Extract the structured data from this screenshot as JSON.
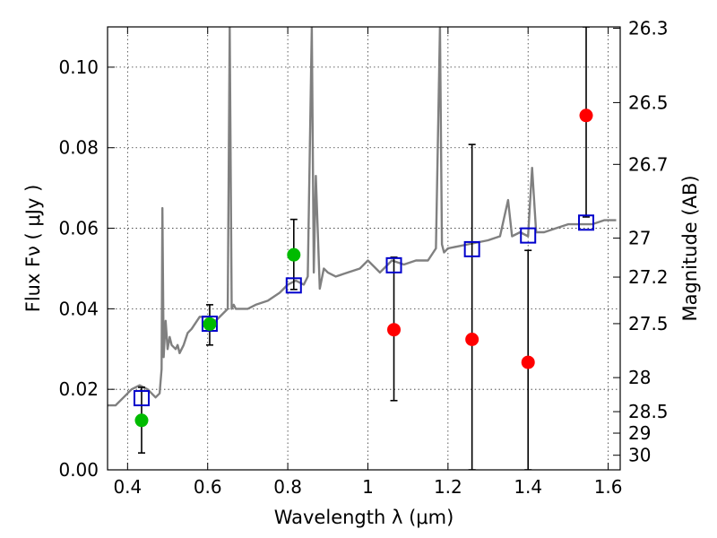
{
  "chart_data": {
    "type": "scatter",
    "title": "",
    "xlabel": "Wavelength  λ (μm)",
    "ylabel": "Flux  Fν  ( μJy )",
    "y2label": "Magnitude (AB)",
    "xlim": [
      0.35,
      1.63
    ],
    "ylim": [
      0.0,
      0.11
    ],
    "xticks": [
      0.4,
      0.6,
      0.8,
      1.0,
      1.2,
      1.4,
      1.6
    ],
    "xtick_labels": [
      "0.4",
      "0.6",
      "0.8",
      "1",
      "1.2",
      "1.4",
      "1.6"
    ],
    "yticks": [
      0.0,
      0.02,
      0.04,
      0.06,
      0.08,
      0.1
    ],
    "ytick_labels": [
      "0.00",
      "0.02",
      "0.04",
      "0.06",
      "0.08",
      "0.10"
    ],
    "y2ticks": [
      26.3,
      26.5,
      26.7,
      27,
      27.2,
      27.5,
      28,
      28.5,
      29,
      30
    ],
    "y2tick_labels": [
      "26.3",
      "26.5",
      "26.7",
      "27",
      "27.2",
      "27.5",
      "28",
      "28.5",
      "29",
      "30"
    ],
    "grid": true,
    "colors": {
      "spectrum": "#808080",
      "model_boxes": "#0000cc",
      "green_points": "#00bb00",
      "red_points": "#ff0000",
      "errorbars": "#000000"
    },
    "spectrum": {
      "x": [
        0.35,
        0.37,
        0.39,
        0.41,
        0.43,
        0.45,
        0.47,
        0.48,
        0.485,
        0.487,
        0.49,
        0.495,
        0.5,
        0.505,
        0.51,
        0.52,
        0.525,
        0.53,
        0.54,
        0.55,
        0.56,
        0.58,
        0.6,
        0.62,
        0.64,
        0.65,
        0.655,
        0.66,
        0.665,
        0.67,
        0.7,
        0.72,
        0.75,
        0.78,
        0.8,
        0.82,
        0.84,
        0.85,
        0.86,
        0.865,
        0.87,
        0.88,
        0.89,
        0.9,
        0.92,
        0.95,
        0.98,
        1.0,
        1.03,
        1.06,
        1.09,
        1.12,
        1.15,
        1.17,
        1.18,
        1.185,
        1.19,
        1.2,
        1.25,
        1.3,
        1.33,
        1.35,
        1.36,
        1.38,
        1.4,
        1.41,
        1.42,
        1.44,
        1.47,
        1.5,
        1.53,
        1.56,
        1.59,
        1.62
      ],
      "y": [
        0.016,
        0.016,
        0.018,
        0.02,
        0.021,
        0.02,
        0.018,
        0.019,
        0.025,
        0.065,
        0.028,
        0.037,
        0.03,
        0.033,
        0.031,
        0.03,
        0.031,
        0.029,
        0.031,
        0.034,
        0.035,
        0.038,
        0.038,
        0.037,
        0.039,
        0.04,
        0.11,
        0.04,
        0.041,
        0.04,
        0.04,
        0.041,
        0.042,
        0.044,
        0.046,
        0.047,
        0.046,
        0.048,
        0.11,
        0.049,
        0.073,
        0.045,
        0.05,
        0.049,
        0.048,
        0.049,
        0.05,
        0.052,
        0.049,
        0.052,
        0.051,
        0.052,
        0.052,
        0.055,
        0.11,
        0.056,
        0.054,
        0.055,
        0.056,
        0.057,
        0.058,
        0.067,
        0.058,
        0.059,
        0.058,
        0.075,
        0.059,
        0.059,
        0.06,
        0.061,
        0.061,
        0.061,
        0.062,
        0.062
      ]
    },
    "model_boxes": {
      "x": [
        0.435,
        0.605,
        0.815,
        1.065,
        1.26,
        1.4,
        1.545
      ],
      "y": [
        0.0178,
        0.0363,
        0.0458,
        0.0508,
        0.0548,
        0.0582,
        0.0614
      ]
    },
    "green_points": {
      "x": [
        0.435,
        0.605,
        0.815
      ],
      "y": [
        0.0123,
        0.0362,
        0.0534
      ],
      "err_low": [
        0.0042,
        0.031,
        0.0448
      ],
      "err_high": [
        0.0205,
        0.041,
        0.0622
      ]
    },
    "red_points": {
      "x": [
        1.065,
        1.26,
        1.4,
        1.545
      ],
      "y": [
        0.0348,
        0.0324,
        0.0267,
        0.088
      ],
      "err_low": [
        0.0172,
        0.0,
        0.0,
        0.0628
      ],
      "err_high": [
        0.0528,
        0.0808,
        0.0545,
        0.11
      ]
    }
  }
}
